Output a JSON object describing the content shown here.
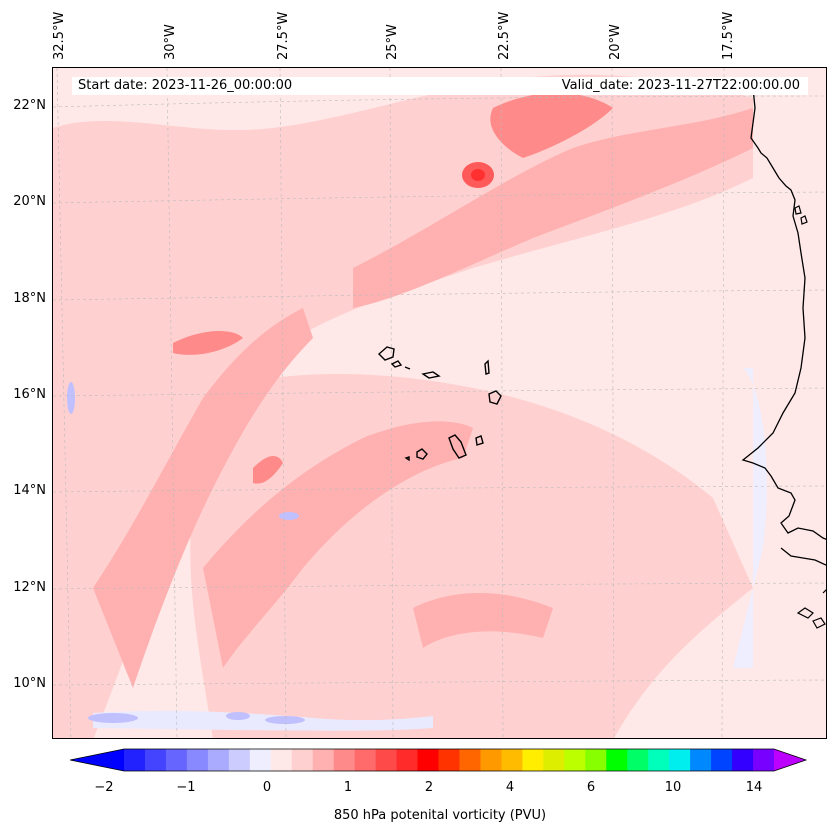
{
  "map": {
    "start_date": "Start date: 2023-11-26_00:00:00",
    "valid_date": "Valid_date: 2023-11-27T22:00:00.00",
    "longitude_labels": [
      "32.5°W",
      "30°W",
      "27.5°W",
      "25°W",
      "22.5°W",
      "20°W",
      "17.5°W"
    ],
    "latitude_labels": [
      "22°N",
      "20°N",
      "18°N",
      "16°N",
      "14°N",
      "12°N",
      "10°N"
    ],
    "colors": {
      "background_field": "#ffe8e8",
      "light_pink": "#ffd0d0",
      "mid_pink": "#ffb0b0",
      "strong_pink": "#ff8a8a",
      "dark_red": "#ff5a5a",
      "pale_blue": "#eaeaff",
      "blue": "#c0c0ff",
      "coast": "#000000"
    }
  },
  "colorbar": {
    "label": "850 hPa potenital vorticity (PVU)",
    "tick_labels": [
      "−2",
      "−1",
      "0",
      "1",
      "2",
      "4",
      "6",
      "10",
      "14"
    ],
    "colors": [
      "#0000ff",
      "#2222ff",
      "#4444ff",
      "#6666ff",
      "#8888ff",
      "#aaaaff",
      "#ccccff",
      "#eeeeff",
      "#ffe8e8",
      "#ffd0d0",
      "#ffb0b0",
      "#ff8a8a",
      "#ff6a6a",
      "#ff4a4a",
      "#ff2a2a",
      "#ff0000",
      "#ff3300",
      "#ff6600",
      "#ff9900",
      "#ffbb00",
      "#ffee00",
      "#ddee00",
      "#bbff00",
      "#88ff00",
      "#00ff00",
      "#00ff66",
      "#00ffbb",
      "#00eeee",
      "#0088ff",
      "#0044ff",
      "#3300ff",
      "#7700ff",
      "#bb00ff"
    ]
  }
}
